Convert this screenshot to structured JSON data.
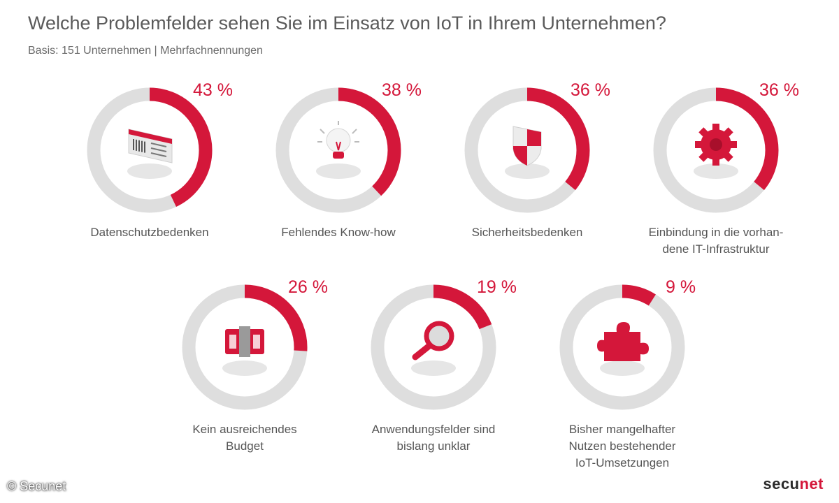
{
  "title": "Welche Problemfelder sehen Sie im Einsatz von IoT in Ihrem Unternehmen?",
  "subtitle": "Basis: 151 Unternehmen | Mehrfachnennungen",
  "chart_data": {
    "type": "pie",
    "variant": "donut-grid",
    "unit": "%",
    "categories": [
      "Datenschutzbedenken",
      "Fehlendes Know-how",
      "Sicherheitsbedenken",
      "Einbindung in die vorhan-\ndene IT-Infrastruktur",
      "Kein ausreichendes\nBudget",
      "Anwendungsfelder sind\nbislang unklar",
      "Bisher mangelhafter\nNutzen bestehender\nIoT-Umsetzungen"
    ],
    "values": [
      43,
      38,
      36,
      36,
      26,
      19,
      9
    ],
    "value_labels": [
      "43 %",
      "38 %",
      "36 %",
      "36 %",
      "26 %",
      "19 %",
      "9 %"
    ],
    "icons": [
      "id-card-icon",
      "lightbulb-icon",
      "shield-icon",
      "gear-icon",
      "money-stack-icon",
      "magnifier-icon",
      "puzzle-icon"
    ],
    "colors": {
      "value": "#d4173a",
      "track": "#dedede"
    }
  },
  "footer": {
    "copyright": "© Secunet",
    "brand_prefix": "secu",
    "brand_suffix": "net"
  }
}
